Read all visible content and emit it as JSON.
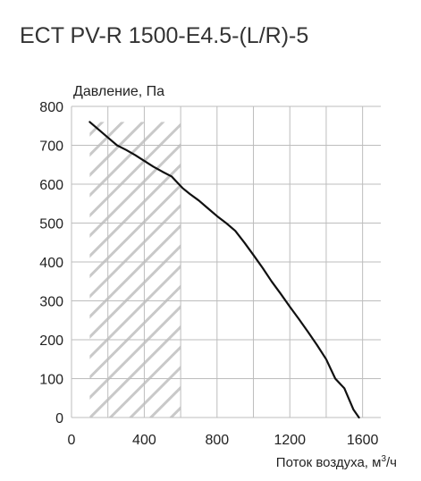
{
  "chart_data": {
    "type": "line",
    "title": "ECT PV-R 1500-E4.5-(L/R)-5",
    "ylabel": "Давление, Па",
    "xlabel_text": "Поток воздуха, м",
    "xlabel_sup": "3",
    "xlabel_tail": "/ч",
    "xlim": [
      0,
      1700
    ],
    "ylim": [
      0,
      800
    ],
    "x_tick_labels": [
      "0",
      "400",
      "800",
      "1200",
      "1600"
    ],
    "x_tick_values": [
      0,
      400,
      800,
      1200,
      1600
    ],
    "y_tick_labels": [
      "0",
      "100",
      "200",
      "300",
      "400",
      "500",
      "600",
      "700",
      "800"
    ],
    "y_tick_values": [
      0,
      100,
      200,
      300,
      400,
      500,
      600,
      700,
      800
    ],
    "grid": true,
    "hatched_region": {
      "x": [
        100,
        600
      ],
      "y": [
        0,
        760
      ]
    },
    "series": [
      {
        "x": [
          100,
          150,
          200,
          250,
          300,
          350,
          400,
          450,
          500,
          550,
          580,
          610,
          650,
          700,
          750,
          800,
          850,
          900,
          950,
          1000,
          1050,
          1100,
          1150,
          1200,
          1250,
          1300,
          1350,
          1400,
          1450,
          1500,
          1550,
          1580
        ],
        "y": [
          760,
          740,
          720,
          700,
          688,
          675,
          660,
          645,
          632,
          620,
          605,
          590,
          575,
          558,
          538,
          518,
          500,
          480,
          450,
          418,
          385,
          350,
          318,
          285,
          253,
          220,
          186,
          150,
          100,
          75,
          20,
          0
        ],
        "color": "#111111"
      }
    ]
  }
}
